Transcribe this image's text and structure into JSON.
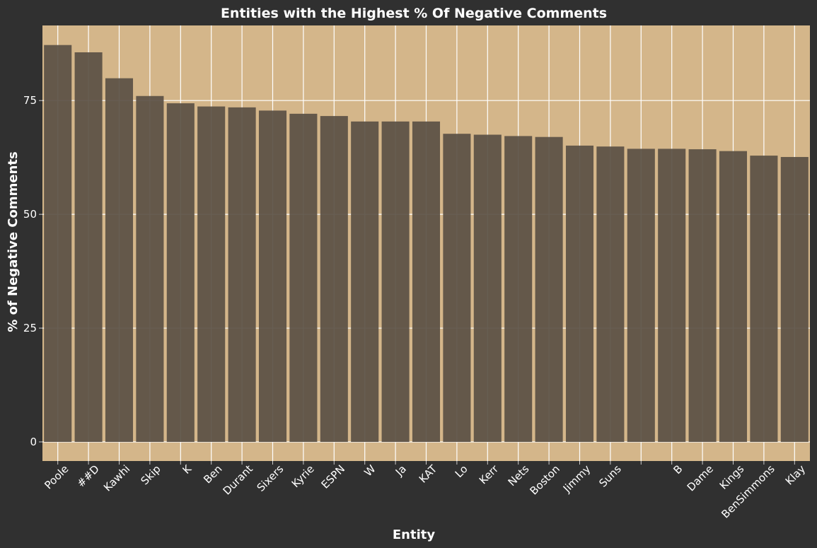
{
  "chart_data": {
    "type": "bar",
    "title": "Entities with the Highest % Of Negative Comments",
    "xlabel": "Entity",
    "ylabel": "% of Negative Comments",
    "categories": [
      "Poole",
      "##D",
      "Kawhi",
      "Skip",
      "K",
      "Ben",
      "Durant",
      "Sixers",
      "Kyrie",
      "ESPN",
      "W",
      "Ja",
      "KAT",
      "Lo",
      "Kerr",
      "Nets",
      "Boston",
      "Jimmy",
      "Suns",
      "",
      "B",
      "Dame",
      "Kings",
      "BenSimmons",
      "Klay"
    ],
    "values": [
      87.2,
      85.6,
      79.9,
      76.0,
      74.4,
      73.7,
      73.5,
      72.8,
      72.1,
      71.6,
      70.4,
      70.4,
      70.4,
      67.7,
      67.5,
      67.2,
      67.0,
      65.1,
      64.9,
      64.4,
      64.4,
      64.3,
      63.9,
      62.9,
      62.6
    ],
    "yticks": [
      0,
      25,
      50,
      75
    ],
    "ylim": [
      -4.2,
      91.5
    ],
    "grid": true,
    "colors": {
      "figure_background": "#303030",
      "plot_background": "#d4b68a",
      "bar": "#5a5044",
      "grid": "#ffffff",
      "text": "#ffffff"
    }
  }
}
